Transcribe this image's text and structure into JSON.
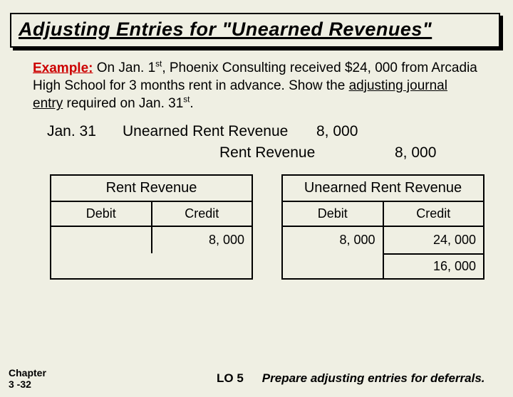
{
  "title": "Adjusting Entries for \"Unearned Revenues\"",
  "example": {
    "label": "Example:",
    "text_html": " On Jan. 1<sup>st</sup>, Phoenix Consulting received $24, 000 from Arcadia High School for 3 months rent in advance. Show the <u>adjusting journal entry</u> required on Jan. 31<sup>st</sup>."
  },
  "journal": {
    "date": "Jan. 31",
    "debit_account": "Unearned Rent Revenue",
    "debit_amount": "8, 000",
    "credit_account": "Rent Revenue",
    "credit_amount": "8, 000"
  },
  "t1": {
    "name": "Rent Revenue",
    "debit_h": "Debit",
    "credit_h": "Credit",
    "debit_v": "",
    "credit_v": "8, 000"
  },
  "t2": {
    "name": "Unearned Rent Revenue",
    "debit_h": "Debit",
    "credit_h": "Credit",
    "debit_v": "8, 000",
    "credit_v": "24, 000",
    "total": "16, 000"
  },
  "footer": {
    "chapter_l1": "Chapter",
    "chapter_l2": "3 -32",
    "lo": "LO 5",
    "tagline": "Prepare adjusting entries for deferrals."
  },
  "colors": {
    "bg": "#efefe3",
    "accent_red": "#cc0000",
    "border": "#000000"
  }
}
